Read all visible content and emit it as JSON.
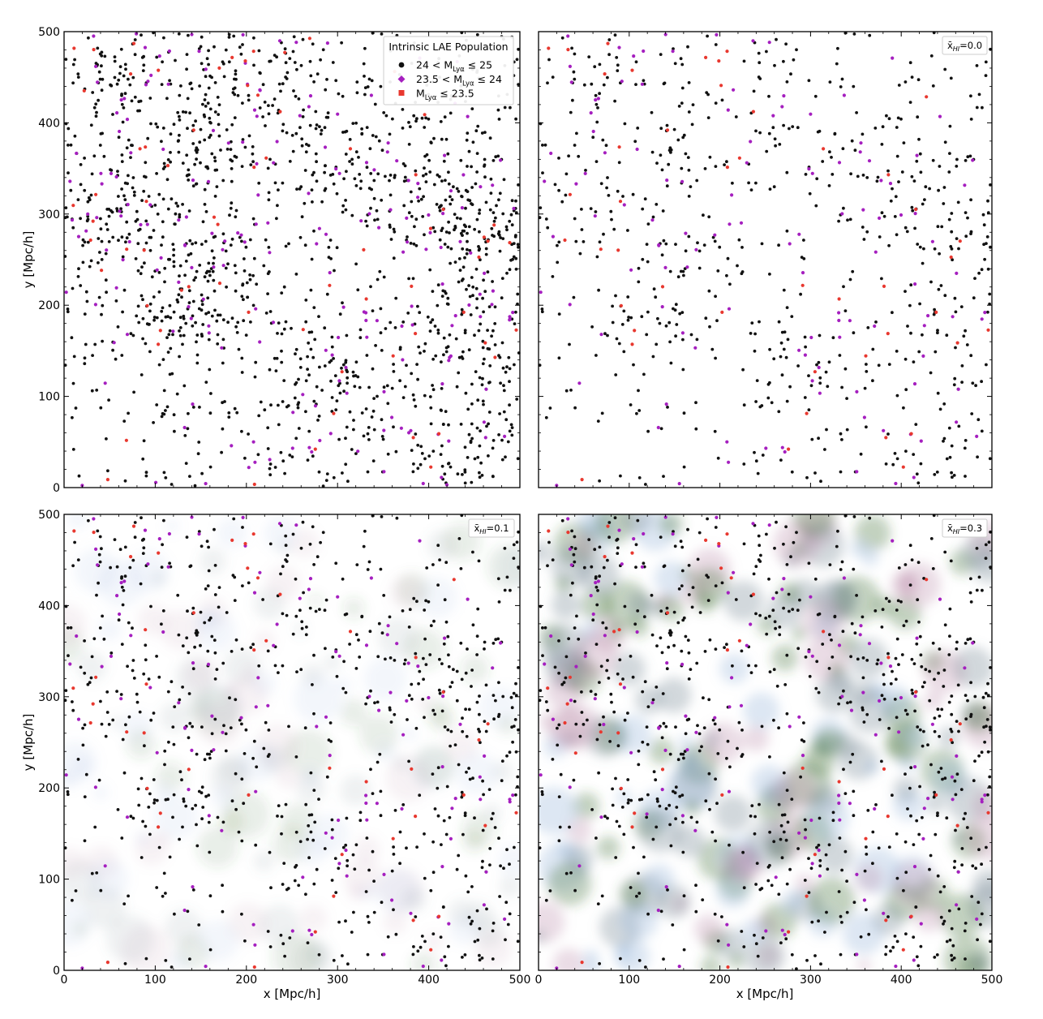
{
  "chart_data": {
    "type": "scatter",
    "shared": {
      "xlabel": "x [Mpc/h]",
      "ylabel": "y [Mpc/h]",
      "xlim": [
        0,
        500
      ],
      "ylim": [
        0,
        500
      ],
      "xticks": [
        "0",
        "100",
        "200",
        "300",
        "400",
        "500"
      ],
      "yticks": [
        "0",
        "100",
        "200",
        "300",
        "400",
        "500"
      ],
      "grid": false
    },
    "legend": {
      "title": "Intrinsic LAE Population",
      "placement": "top-right of first panel",
      "entries": [
        {
          "marker": "circle",
          "color": "#111111",
          "pre": "24 < M",
          "sub": "Lyα",
          "post": " ≤ 25"
        },
        {
          "marker": "diamond",
          "color": "#a51fbf",
          "pre": "23.5 < M",
          "sub": "Lyα",
          "post": " ≤ 24"
        },
        {
          "marker": "square",
          "color": "#e8382f",
          "pre": "M",
          "sub": "Lyα",
          "post": " ≤ 23.5"
        }
      ]
    },
    "series_colors": {
      "faint": "#111111",
      "mid": "#a51fbf",
      "bright": "#e8382f"
    },
    "panels": [
      {
        "id": "intrinsic",
        "label": "",
        "neutral_field": false,
        "xhi": 0,
        "approx_counts": {
          "faint": 1500,
          "mid": 210,
          "bright": 70
        },
        "xlabel_shown": false,
        "ylabel_shown": true
      },
      {
        "id": "xhi-0.0",
        "label": "x̄HI=0.0",
        "label_parts": {
          "sym": "x̄",
          "sub": "HI",
          "val": "=0.0"
        },
        "neutral_field": false,
        "xhi": 0.0,
        "approx_counts": {
          "faint": 640,
          "mid": 120,
          "bright": 45
        },
        "xlabel_shown": false,
        "ylabel_shown": false
      },
      {
        "id": "xhi-0.1",
        "label": "x̄HI=0.1",
        "label_parts": {
          "sym": "x̄",
          "sub": "HI",
          "val": "=0.1"
        },
        "neutral_field": true,
        "xhi": 0.1,
        "approx_counts": {
          "faint": 690,
          "mid": 125,
          "bright": 48
        },
        "xlabel_shown": true,
        "ylabel_shown": true
      },
      {
        "id": "xhi-0.3",
        "label": "x̄HI=0.3",
        "label_parts": {
          "sym": "x̄",
          "sub": "HI",
          "val": "=0.3"
        },
        "neutral_field": true,
        "xhi": 0.3,
        "approx_counts": {
          "faint": 720,
          "mid": 130,
          "bright": 50
        },
        "xlabel_shown": true,
        "ylabel_shown": false
      }
    ],
    "dense_regions": [
      {
        "x": 170,
        "y": 220
      },
      {
        "x": 460,
        "y": 280
      },
      {
        "x": 410,
        "y": 320
      },
      {
        "x": 300,
        "y": 125
      },
      {
        "x": 470,
        "y": 180
      },
      {
        "x": 150,
        "y": 360
      },
      {
        "x": 80,
        "y": 450
      },
      {
        "x": 210,
        "y": 470
      },
      {
        "x": 440,
        "y": 50
      },
      {
        "x": 60,
        "y": 300
      },
      {
        "x": 130,
        "y": 210
      },
      {
        "x": 300,
        "y": 380
      }
    ],
    "neutral_palette": [
      "#3c6b32",
      "#6b7d8a",
      "#b88aa8",
      "#8fb0d8"
    ]
  }
}
